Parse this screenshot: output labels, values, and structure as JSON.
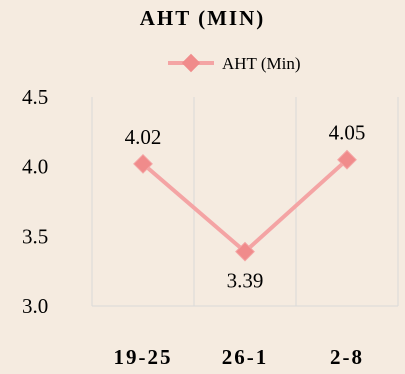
{
  "chart_data": {
    "type": "line",
    "title": "AHT (MIN)",
    "categories": [
      "19-25",
      "26-1",
      "2-8"
    ],
    "series": [
      {
        "name": "AHT (Min)",
        "values": [
          4.02,
          3.39,
          4.05
        ],
        "data_labels": [
          "4.02",
          "3.39",
          "4.05"
        ]
      }
    ],
    "yticks": [
      "4.5",
      "4.0",
      "3.5",
      "3.0"
    ],
    "ylim": [
      3.0,
      4.5
    ],
    "xlabel": "",
    "ylabel": "",
    "grid": "vertical",
    "legend": "top-center",
    "colors": {
      "series": "#f4a4a4",
      "marker": "#f08b8b",
      "grid": "#d9d9d9",
      "background": "#f5ebe0"
    }
  }
}
